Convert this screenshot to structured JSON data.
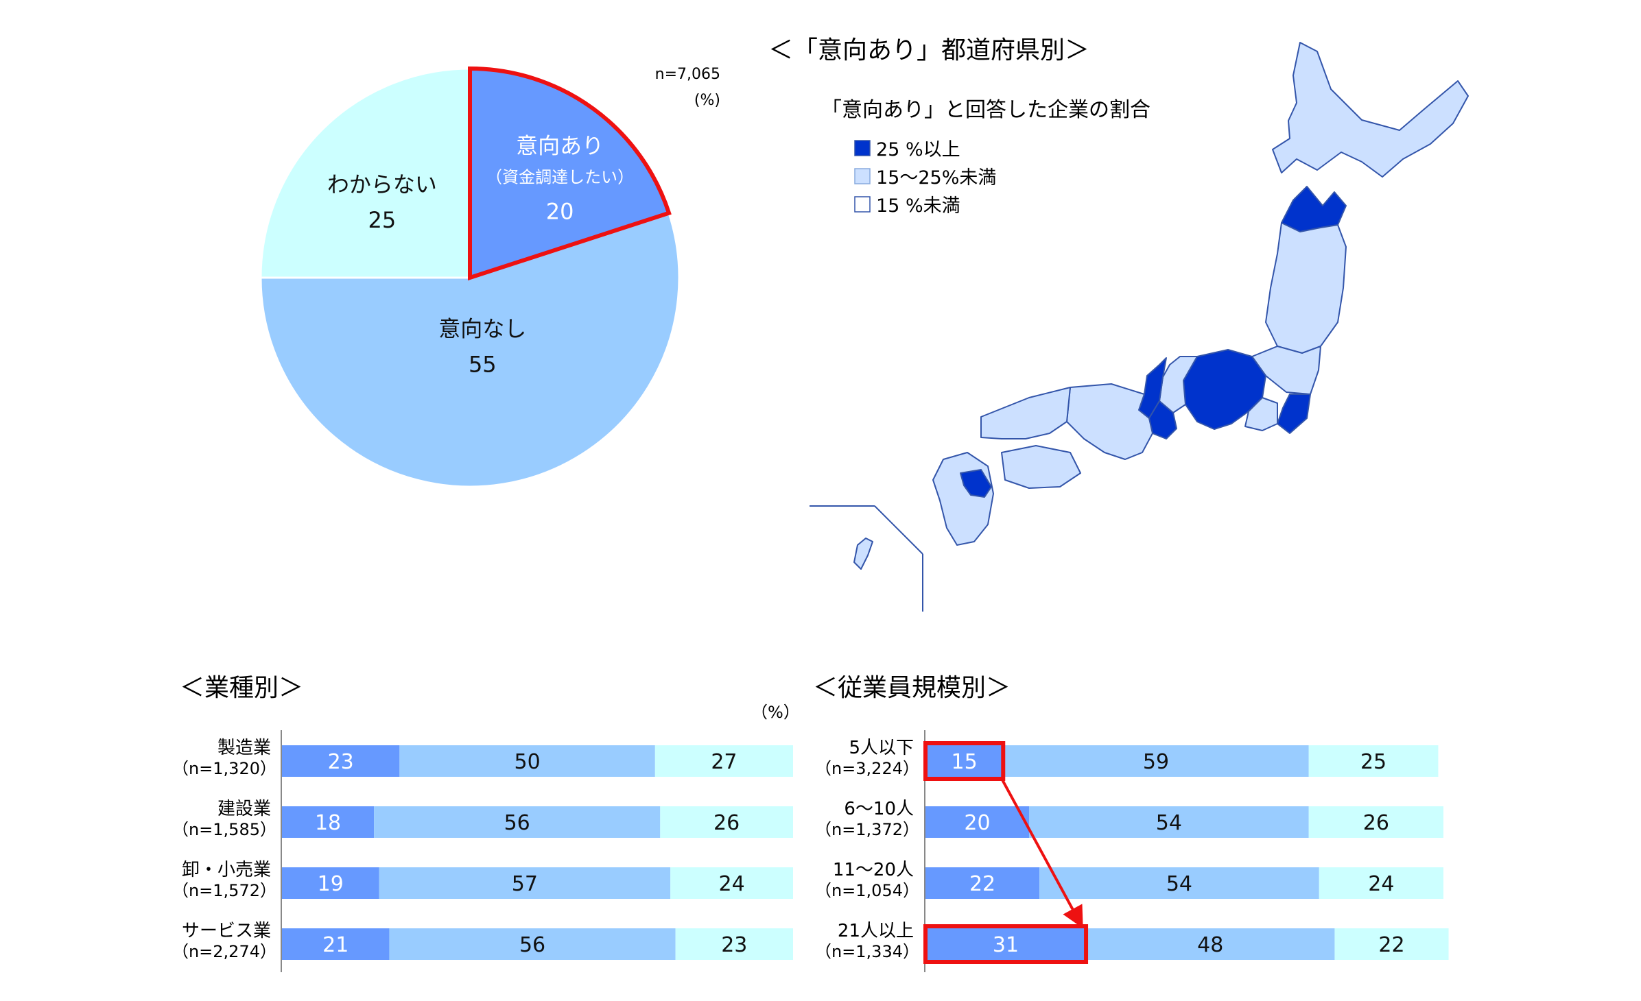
{
  "pie": {
    "n_label": "n=7,065",
    "unit_label": "(%)",
    "slices": [
      {
        "label": "意向あり",
        "sublabel": "（資金調達したい）",
        "value": 20,
        "color": "#6699ff",
        "highlight": true
      },
      {
        "label": "意向なし",
        "sublabel": "",
        "value": 55,
        "color": "#99ccff",
        "highlight": false
      },
      {
        "label": "わからない",
        "sublabel": "",
        "value": 25,
        "color": "#ccffff",
        "highlight": false
      }
    ]
  },
  "map": {
    "title": "＜「意向あり」都道府県別＞",
    "legend_title": "「意向あり」と回答した企業の割合",
    "legend": [
      {
        "label": "25 %以上",
        "color": "#0033cc"
      },
      {
        "label": "15～25%未満",
        "color": "#cce0ff"
      },
      {
        "label": "15 %未満",
        "color": "#ffffff"
      }
    ]
  },
  "industry": {
    "title": "＜業種別＞",
    "unit_label": "（%）",
    "rows": [
      {
        "label": "製造業",
        "n": "（n=1,320）",
        "values": [
          23,
          50,
          27
        ]
      },
      {
        "label": "建設業",
        "n": "（n=1,585）",
        "values": [
          18,
          56,
          26
        ]
      },
      {
        "label": "卸・小売業",
        "n": "（n=1,572）",
        "values": [
          19,
          57,
          24
        ]
      },
      {
        "label": "サービス業",
        "n": "（n=2,274）",
        "values": [
          21,
          56,
          23
        ]
      }
    ]
  },
  "size": {
    "title": "＜従業員規模別＞",
    "rows": [
      {
        "label": "5人以下",
        "n": "（n=3,224）",
        "values": [
          15,
          59,
          25
        ],
        "highlight": true
      },
      {
        "label": "6～10人",
        "n": "（n=1,372）",
        "values": [
          20,
          54,
          26
        ],
        "highlight": false
      },
      {
        "label": "11～20人",
        "n": "（n=1,054）",
        "values": [
          22,
          54,
          24
        ],
        "highlight": false
      },
      {
        "label": "21人以上",
        "n": "（n=1,334）",
        "values": [
          31,
          48,
          22
        ],
        "highlight": true
      }
    ]
  },
  "chart_data": [
    {
      "type": "pie",
      "categories": [
        "意向あり（資金調達したい）",
        "意向なし",
        "わからない"
      ],
      "values": [
        20,
        55,
        25
      ]
    },
    {
      "type": "bar",
      "title": "＜業種別＞",
      "categories": [
        "製造業（n=1,320）",
        "建設業（n=1,585）",
        "卸・小売業（n=1,572）",
        "サービス業（n=2,274）"
      ],
      "series": [
        {
          "values": [
            23,
            18,
            19,
            21
          ]
        },
        {
          "values": [
            50,
            56,
            57,
            56
          ]
        },
        {
          "values": [
            27,
            26,
            24,
            23
          ]
        }
      ]
    },
    {
      "type": "bar",
      "title": "＜従業員規模別＞",
      "categories": [
        "5人以下（n=3,224）",
        "6～10人（n=1,372）",
        "11～20人（n=1,054）",
        "21人以上（n=1,334）"
      ],
      "series": [
        {
          "values": [
            15,
            20,
            22,
            31
          ]
        },
        {
          "values": [
            59,
            54,
            54,
            48
          ]
        },
        {
          "values": [
            25,
            26,
            24,
            22
          ]
        }
      ]
    }
  ]
}
